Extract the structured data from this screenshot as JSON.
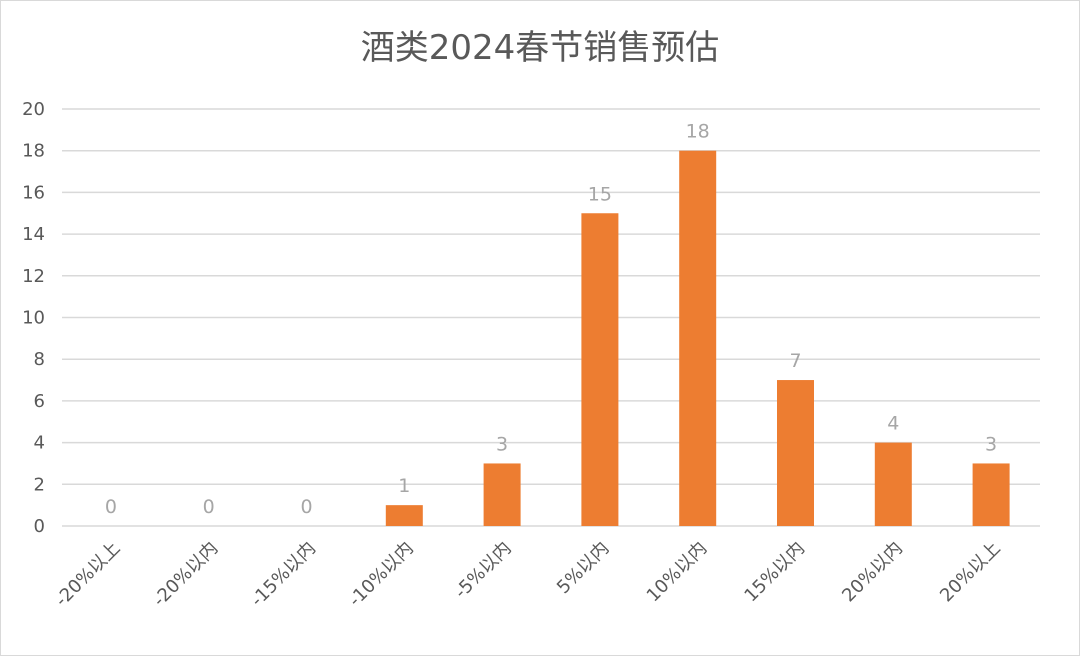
{
  "chart_data": {
    "type": "bar",
    "title": "酒类2024春节销售预估",
    "categories": [
      "-20%以上",
      "-20%以内",
      "-15%以内",
      "-10%以内",
      "-5%以内",
      "5%以内",
      "10%以内",
      "15%以内",
      "20%以内",
      "20%以上"
    ],
    "values": [
      0,
      0,
      0,
      1,
      3,
      15,
      18,
      7,
      4,
      3
    ],
    "data_labels": [
      "0",
      "0",
      "0",
      "1",
      "3",
      "15",
      "18",
      "7",
      "4",
      "3"
    ],
    "ylim": [
      0,
      20
    ],
    "yticks": [
      0,
      2,
      4,
      6,
      8,
      10,
      12,
      14,
      16,
      18,
      20
    ],
    "ytick_labels": [
      "0",
      "2",
      "4",
      "6",
      "8",
      "10",
      "12",
      "14",
      "16",
      "18",
      "20"
    ],
    "xlabel": "",
    "ylabel": "",
    "grid": true,
    "legend": "none",
    "bar_color": "#ed7d31",
    "x_tick_rotation_deg": -45
  }
}
